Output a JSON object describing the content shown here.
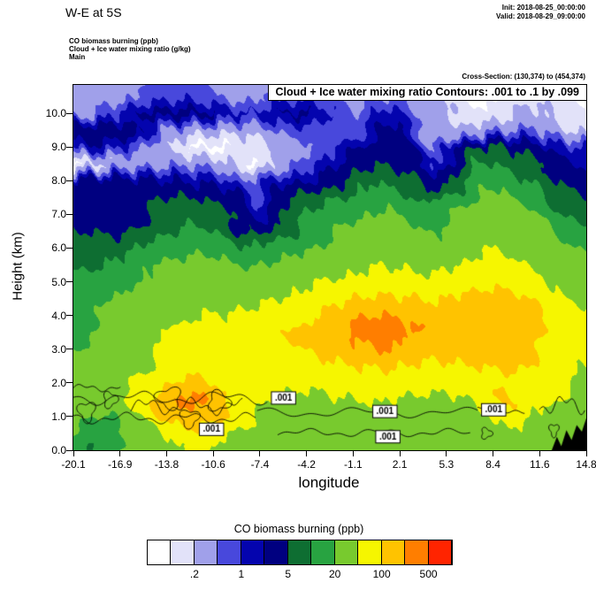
{
  "header": {
    "title": "W-E at 5S",
    "init": "Init: 2018-08-25_00:00:00",
    "valid": "Valid: 2018-08-29_09:00:00",
    "field_line1": "CO biomass burning   (ppb)",
    "field_line2": "Cloud + Ice water mixing ratio   (g/kg)",
    "field_line3": "Main",
    "cross_section": "Cross-Section: (130,374) to (454,374)"
  },
  "plot": {
    "contour_info": "Cloud + Ice water mixing ratio Contours: .001 to .1 by .099",
    "xlabel": "longitude",
    "ylabel": "Height (km)",
    "x_ticks": [
      "-20.1",
      "-16.9",
      "-13.8",
      "-10.6",
      "-7.4",
      "-4.2",
      "-1.1",
      "2.1",
      "5.3",
      "8.4",
      "11.6",
      "14.8"
    ],
    "y_ticks": [
      "0.0",
      "1.0",
      "2.0",
      "3.0",
      "4.0",
      "5.0",
      "6.0",
      "7.0",
      "8.0",
      "9.0",
      "10.0"
    ]
  },
  "colorbar": {
    "title": "CO biomass burning  (ppb)",
    "colors": [
      "#FFFFFF",
      "#E2E2F9",
      "#A0A0EA",
      "#4848DC",
      "#0404AE",
      "#000080",
      "#0E6E32",
      "#28A341",
      "#78CA2E",
      "#F6F600",
      "#FFC300",
      "#FF7E00",
      "#FF2400"
    ],
    "labels": [
      {
        "text": ".2",
        "boundary": 2
      },
      {
        "text": "1",
        "boundary": 4
      },
      {
        "text": "5",
        "boundary": 6
      },
      {
        "text": "20",
        "boundary": 8
      },
      {
        "text": "100",
        "boundary": 10
      },
      {
        "text": "500",
        "boundary": 12
      }
    ]
  },
  "chart_data": {
    "type": "heatmap",
    "title": "W-E at 5S",
    "x_name": "longitude",
    "y_name": "Height (km)",
    "x_range": [
      -20.1,
      14.8
    ],
    "y_range": [
      0,
      10.84
    ],
    "fill_field": "CO biomass burning (ppb)",
    "line_field": "Cloud + Ice water mixing ratio (g/kg)",
    "levels_ppb": [
      0.1,
      0.2,
      0.5,
      1,
      2,
      5,
      10,
      20,
      50,
      100,
      200,
      500
    ],
    "overlay_contour_values": [
      0.001,
      0.1
    ],
    "x_lon": [
      -20.1,
      -18.35,
      -16.6,
      -14.85,
      -13.1,
      -11.35,
      -9.6,
      -7.85,
      -6.1,
      -4.35,
      -2.6,
      -0.85,
      0.9,
      2.65,
      4.4,
      6.15,
      7.9,
      9.65,
      11.4,
      13.15,
      14.8
    ],
    "y_km": [
      0,
      0.5,
      1,
      1.5,
      2,
      2.5,
      3,
      3.5,
      4,
      4.5,
      5,
      5.5,
      6,
      6.5,
      7,
      7.5,
      8,
      8.5,
      9,
      9.5,
      10,
      10.5
    ],
    "values_ppb": [
      [
        16,
        9,
        22,
        32,
        45,
        60,
        42,
        32,
        28,
        26,
        30,
        32,
        30,
        28,
        26,
        30,
        32,
        34,
        30,
        28,
        26
      ],
      [
        22,
        12,
        26,
        38,
        65,
        85,
        52,
        36,
        32,
        30,
        34,
        36,
        36,
        32,
        32,
        34,
        38,
        42,
        34,
        30,
        28
      ],
      [
        26,
        18,
        32,
        65,
        130,
        160,
        75,
        45,
        38,
        36,
        42,
        44,
        44,
        42,
        38,
        42,
        46,
        80,
        46,
        38,
        32
      ],
      [
        30,
        28,
        42,
        85,
        260,
        230,
        95,
        65,
        48,
        44,
        48,
        50,
        52,
        48,
        44,
        48,
        64,
        120,
        90,
        44,
        36
      ],
      [
        26,
        30,
        44,
        66,
        120,
        110,
        80,
        62,
        55,
        55,
        60,
        65,
        68,
        62,
        58,
        64,
        74,
        92,
        74,
        52,
        42
      ],
      [
        22,
        27,
        38,
        55,
        80,
        82,
        68,
        60,
        62,
        72,
        85,
        100,
        110,
        96,
        84,
        92,
        102,
        108,
        92,
        62,
        50
      ],
      [
        19,
        24,
        33,
        46,
        62,
        64,
        58,
        60,
        75,
        98,
        125,
        170,
        210,
        175,
        130,
        138,
        140,
        132,
        112,
        76,
        58
      ],
      [
        17,
        22,
        30,
        40,
        54,
        58,
        55,
        62,
        85,
        120,
        170,
        300,
        380,
        260,
        155,
        155,
        150,
        140,
        118,
        80,
        60
      ],
      [
        15,
        20,
        27,
        36,
        48,
        52,
        50,
        56,
        72,
        95,
        125,
        165,
        210,
        170,
        130,
        140,
        142,
        130,
        105,
        70,
        54
      ],
      [
        13,
        17,
        23,
        30,
        40,
        45,
        42,
        44,
        52,
        64,
        80,
        98,
        112,
        102,
        92,
        104,
        118,
        108,
        86,
        58,
        45
      ],
      [
        11,
        14,
        18,
        24,
        32,
        36,
        32,
        30,
        34,
        42,
        52,
        64,
        74,
        68,
        60,
        74,
        92,
        86,
        66,
        44,
        34
      ],
      [
        9,
        10,
        13,
        18,
        24,
        26,
        22,
        18,
        22,
        28,
        36,
        44,
        50,
        46,
        40,
        52,
        70,
        64,
        48,
        32,
        24
      ],
      [
        7,
        7,
        8,
        12,
        16,
        18,
        14,
        10,
        14,
        19,
        26,
        32,
        36,
        32,
        26,
        36,
        52,
        48,
        36,
        24,
        16
      ],
      [
        5,
        5,
        4,
        8,
        11,
        12,
        9,
        4,
        8,
        13,
        18,
        24,
        28,
        24,
        18,
        26,
        40,
        36,
        26,
        16,
        11
      ],
      [
        4,
        4,
        3,
        6,
        8,
        8,
        6,
        1.2,
        5,
        10,
        14,
        18,
        22,
        18,
        12,
        20,
        32,
        28,
        20,
        12,
        8
      ],
      [
        3,
        3,
        3.5,
        4.5,
        5.5,
        5,
        3.5,
        0.6,
        3.5,
        6,
        9,
        13,
        17,
        13,
        8,
        15,
        26,
        23,
        15,
        8,
        5
      ],
      [
        3,
        3.5,
        3,
        2.5,
        2,
        1.5,
        1,
        0.5,
        1.2,
        2,
        4,
        7,
        10,
        7,
        3,
        9,
        18,
        15,
        9,
        4,
        2.5
      ],
      [
        0.08,
        0.12,
        0.25,
        0.35,
        0.45,
        0.4,
        0.3,
        0.08,
        0.3,
        0.8,
        1.5,
        3,
        5,
        3.5,
        0.8,
        4,
        12,
        9,
        5,
        2.5,
        1.5
      ],
      [
        1.2,
        1.8,
        0.9,
        0.3,
        0.12,
        0.08,
        0.08,
        0.15,
        0.25,
        0.4,
        0.6,
        1.5,
        4,
        2.5,
        0.3,
        1.5,
        6,
        4,
        3,
        1.5,
        1
      ],
      [
        3.5,
        4,
        3.5,
        1,
        0.4,
        0.3,
        0.25,
        0.3,
        0.5,
        0.8,
        0.5,
        0.8,
        3,
        2,
        0.3,
        0.2,
        0.4,
        0.5,
        0.6,
        0.25,
        0.15
      ],
      [
        0.3,
        0.6,
        1.2,
        2.5,
        3,
        2.5,
        1.5,
        1,
        2,
        2.5,
        1,
        0.5,
        1.5,
        1.2,
        0.3,
        0.15,
        0.1,
        0.15,
        0.3,
        0.15,
        0.08
      ],
      [
        0.3,
        0.35,
        0.3,
        0.6,
        0.8,
        0.6,
        0.4,
        0.3,
        0.6,
        0.8,
        0.4,
        0.25,
        0.5,
        0.4,
        0.2,
        0.1,
        0.07,
        0.1,
        0.15,
        0.1,
        0.07
      ]
    ],
    "terrain_polygon": [
      [
        12.45,
        0
      ],
      [
        12.8,
        0.4
      ],
      [
        13.1,
        0.12
      ],
      [
        13.45,
        0.6
      ],
      [
        13.8,
        0.3
      ],
      [
        14.15,
        0.75
      ],
      [
        14.5,
        0.55
      ],
      [
        14.8,
        0.95
      ],
      [
        14.8,
        0
      ]
    ],
    "cloud_lines": [
      {
        "x0": -20.1,
        "x1": -6.8,
        "y": 1.55,
        "amp": 0.22,
        "f": 1.1,
        "p": 0.0
      },
      {
        "x0": -20.1,
        "x1": -7.6,
        "y": 0.95,
        "amp": 0.18,
        "f": 1.5,
        "p": 1.2
      },
      {
        "x0": -16.2,
        "x1": -8.6,
        "y": 1.3,
        "amp": 0.28,
        "f": 2.0,
        "p": 0.5
      },
      {
        "x0": -7.6,
        "x1": 7.4,
        "y": 1.12,
        "amp": 0.16,
        "f": 0.9,
        "p": 2.1
      },
      {
        "x0": -6.2,
        "x1": 6.9,
        "y": 0.52,
        "amp": 0.13,
        "f": 1.3,
        "p": 0.7
      },
      {
        "x0": 7.4,
        "x1": 10.6,
        "y": 1.22,
        "amp": 0.18,
        "f": 1.7,
        "p": 0.2
      },
      {
        "x0": 11.6,
        "x1": 14.7,
        "y": 1.35,
        "amp": 0.32,
        "f": 2.4,
        "p": 1.0
      },
      {
        "x0": -20.1,
        "x1": -16.8,
        "y": 1.85,
        "amp": 0.12,
        "f": 2.2,
        "p": 0.4
      }
    ],
    "cloud_blobs": [
      {
        "x": -19.2,
        "y": 1.15,
        "rx": 0.55,
        "ry": 0.28
      },
      {
        "x": -17.6,
        "y": 1.5,
        "rx": 0.45,
        "ry": 0.22
      },
      {
        "x": -13.6,
        "y": 1.55,
        "rx": 0.8,
        "ry": 0.3
      },
      {
        "x": -12.2,
        "y": 0.95,
        "rx": 0.6,
        "ry": 0.25
      },
      {
        "x": -10.2,
        "y": 1.45,
        "rx": 0.7,
        "ry": 0.28
      },
      {
        "x": 8.0,
        "y": 0.5,
        "rx": 0.35,
        "ry": 0.15
      },
      {
        "x": 12.6,
        "y": 0.6,
        "rx": 0.3,
        "ry": 0.18
      }
    ],
    "cloud_labels": [
      {
        "text": ".001",
        "x": -10.7,
        "y": 0.62
      },
      {
        "text": ".001",
        "x": -5.8,
        "y": 1.55
      },
      {
        "text": ".001",
        "x": 1.1,
        "y": 1.15
      },
      {
        "text": ".001",
        "x": 1.3,
        "y": 0.4
      },
      {
        "text": ".001",
        "x": 8.5,
        "y": 1.2
      }
    ]
  }
}
